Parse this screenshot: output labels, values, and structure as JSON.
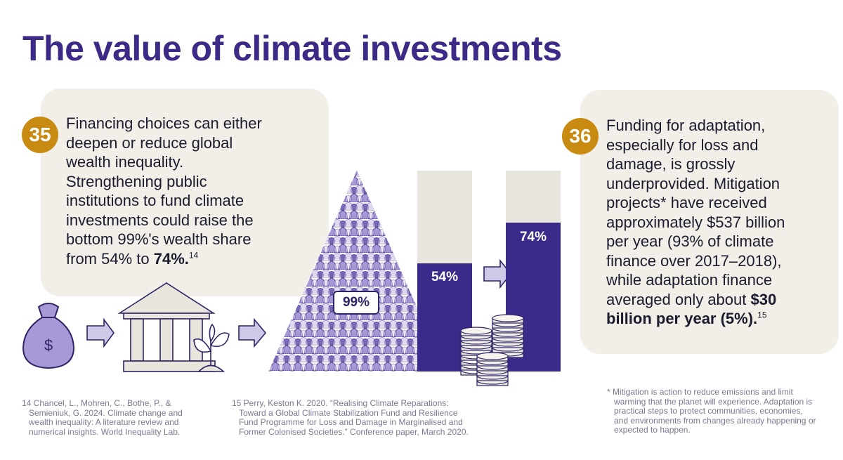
{
  "title": "The value of climate investments",
  "colors": {
    "title": "#3d2a86",
    "badge": "#c98a12",
    "card": "#f1efe8",
    "bar_fill": "#3b2a8a",
    "bar_track": "#e8e6dc",
    "illustration_light": "#cfc8e6",
    "illustration_mid": "#8d7cc4"
  },
  "card_left": {
    "badge": "35",
    "lines": [
      "Financing choices can either",
      "deepen or reduce global",
      "wealth inequality.",
      "Strengthening public",
      "institutions to fund climate",
      "investments could raise the",
      "bottom 99%'s wealth share"
    ],
    "last_prefix": "from 54% to ",
    "last_bold": "74%.",
    "ref": "14"
  },
  "card_right": {
    "badge": "36",
    "lines": [
      "Funding for adaptation,",
      "especially for loss and",
      "damage, is grossly",
      "underprovided. Mitigation",
      "projects* have received",
      "approximately $537 billion",
      "per year (93% of climate",
      "finance over 2017–2018),",
      "while adaptation finance"
    ],
    "last_prefix": "averaged only about ",
    "bold_1": "$30",
    "bold_2": "billion per year (5%).",
    "ref": "15"
  },
  "graphic": {
    "pyramid_label": "99%",
    "bar_before_label": "54%",
    "bar_after_label": "74%",
    "bar_before_value": 0.54,
    "bar_after_value": 0.74,
    "icons": [
      "money-bag-icon",
      "arrow-right-icon",
      "bank-building-icon",
      "sprout-icon",
      "people-pyramid-icon",
      "coin-stack-icon"
    ]
  },
  "footnotes": {
    "fn14": [
      "14 Chancel, L., Mohren, C., Bothe, P., &",
      "Semieniuk, G. 2024. Climate change and",
      "wealth inequality: A literature review and",
      "numerical insights. World Inequality Lab."
    ],
    "fn15": [
      "15 Perry, Keston K. 2020. “Realising Climate Reparations:",
      "Toward a Global Climate Stabilization Fund and Resilience",
      "Fund Programme for Loss and Damage in Marginalised and",
      "Former Colonised Societies.” Conference paper, March 2020."
    ],
    "star": [
      "* Mitigation is action to reduce emissions and limit",
      "warming that the planet will experience. Adaptation is",
      "practical steps to protect communities, economies,",
      "and environments from changes already happening or",
      "expected to happen."
    ]
  }
}
